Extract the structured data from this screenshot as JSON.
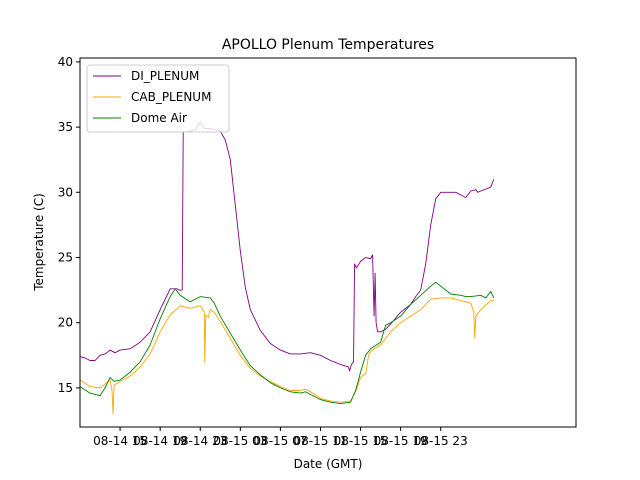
{
  "chart_data": {
    "type": "line",
    "title": "APOLLO Plenum Temperatures",
    "xlabel": "Date (GMT)",
    "ylabel": "Temperature (C)",
    "xlim": [
      0,
      49.5
    ],
    "ylim": [
      12,
      40.3
    ],
    "x_unit": "hours since 2020-08-14 11:00",
    "grid": false,
    "legend_position": "top-left",
    "yticks": [
      15,
      20,
      25,
      30,
      35,
      40
    ],
    "xticks": [
      {
        "value": 4,
        "label": "08-14 15"
      },
      {
        "value": 8,
        "label": "08-14 19"
      },
      {
        "value": 12,
        "label": "08-14 23"
      },
      {
        "value": 16,
        "label": "08-15 03"
      },
      {
        "value": 20,
        "label": "08-15 07"
      },
      {
        "value": 24,
        "label": "08-15 11"
      },
      {
        "value": 28,
        "label": "08-15 15"
      },
      {
        "value": 32,
        "label": "08-15 19"
      },
      {
        "value": 36,
        "label": "08-15 23"
      }
    ],
    "series": [
      {
        "name": "DI_PLENUM",
        "color": "#800080",
        "points": [
          [
            0,
            17.4
          ],
          [
            0.5,
            17.3
          ],
          [
            1,
            17.1
          ],
          [
            1.5,
            17.1
          ],
          [
            2,
            17.5
          ],
          [
            2.5,
            17.6
          ],
          [
            3,
            17.9
          ],
          [
            3.5,
            17.7
          ],
          [
            4,
            17.9
          ],
          [
            5,
            18.0
          ],
          [
            6,
            18.5
          ],
          [
            7,
            19.3
          ],
          [
            8,
            21.0
          ],
          [
            9,
            22.6
          ],
          [
            9.7,
            22.6
          ],
          [
            9.9,
            22.5
          ],
          [
            10.2,
            22.5
          ],
          [
            10.3,
            34.6
          ],
          [
            11,
            34.7
          ],
          [
            11.5,
            34.8
          ],
          [
            12,
            35.4
          ],
          [
            12.4,
            34.9
          ],
          [
            13,
            34.9
          ],
          [
            14,
            34.7
          ],
          [
            14.5,
            34.0
          ],
          [
            15,
            32.5
          ],
          [
            15.5,
            29.0
          ],
          [
            16,
            25.5
          ],
          [
            16.5,
            22.7
          ],
          [
            17,
            21.0
          ],
          [
            18,
            19.4
          ],
          [
            19,
            18.4
          ],
          [
            20,
            17.9
          ],
          [
            21,
            17.6
          ],
          [
            22,
            17.6
          ],
          [
            23,
            17.7
          ],
          [
            24,
            17.5
          ],
          [
            25,
            17.1
          ],
          [
            26,
            16.8
          ],
          [
            26.8,
            16.6
          ],
          [
            26.9,
            16.3
          ],
          [
            27.1,
            16.8
          ],
          [
            27.3,
            17.0
          ],
          [
            27.4,
            24.5
          ],
          [
            27.6,
            24.2
          ],
          [
            28,
            24.7
          ],
          [
            28.5,
            25.0
          ],
          [
            29,
            24.9
          ],
          [
            29.2,
            25.2
          ],
          [
            29.35,
            20.5
          ],
          [
            29.45,
            23.8
          ],
          [
            29.55,
            20.0
          ],
          [
            29.7,
            19.3
          ],
          [
            30,
            19.3
          ],
          [
            30.5,
            19.5
          ],
          [
            31,
            19.9
          ],
          [
            32,
            20.8
          ],
          [
            33,
            21.4
          ],
          [
            33.5,
            22.0
          ],
          [
            34,
            22.5
          ],
          [
            34.5,
            24.5
          ],
          [
            35,
            27.5
          ],
          [
            35.5,
            29.5
          ],
          [
            36,
            30.0
          ],
          [
            37,
            30.0
          ],
          [
            37.5,
            30.0
          ],
          [
            38,
            29.8
          ],
          [
            38.5,
            29.6
          ],
          [
            39,
            30.1
          ],
          [
            39.5,
            30.2
          ],
          [
            39.7,
            30.0
          ],
          [
            40,
            30.1
          ],
          [
            41,
            30.4
          ],
          [
            41.3,
            31.0
          ]
        ]
      },
      {
        "name": "CAB_PLENUM",
        "color": "#ffa500",
        "points": [
          [
            0,
            15.6
          ],
          [
            1,
            15.1
          ],
          [
            2,
            15.0
          ],
          [
            2.5,
            15.3
          ],
          [
            3,
            15.6
          ],
          [
            3.2,
            14.8
          ],
          [
            3.3,
            13.0
          ],
          [
            3.4,
            15.2
          ],
          [
            3.6,
            15.3
          ],
          [
            4,
            15.5
          ],
          [
            5,
            15.9
          ],
          [
            6,
            16.6
          ],
          [
            7,
            17.6
          ],
          [
            8,
            19.3
          ],
          [
            9,
            20.6
          ],
          [
            10,
            21.3
          ],
          [
            11,
            21.1
          ],
          [
            12,
            21.3
          ],
          [
            12.4,
            20.8
          ],
          [
            12.45,
            17.0
          ],
          [
            12.55,
            20.6
          ],
          [
            12.8,
            20.4
          ],
          [
            13,
            21.0
          ],
          [
            13.4,
            20.8
          ],
          [
            14,
            20.1
          ],
          [
            15,
            18.8
          ],
          [
            16,
            17.5
          ],
          [
            17,
            16.5
          ],
          [
            18,
            15.9
          ],
          [
            19,
            15.5
          ],
          [
            20,
            15.1
          ],
          [
            21,
            14.8
          ],
          [
            22,
            14.8
          ],
          [
            22.5,
            14.9
          ],
          [
            23,
            14.7
          ],
          [
            24,
            14.2
          ],
          [
            25,
            14.0
          ],
          [
            26,
            13.9
          ],
          [
            27,
            14.0
          ],
          [
            27.5,
            14.7
          ],
          [
            28,
            15.8
          ],
          [
            28.3,
            16.0
          ],
          [
            28.5,
            16.0
          ],
          [
            28.8,
            17.5
          ],
          [
            29,
            17.8
          ],
          [
            30,
            18.3
          ],
          [
            31,
            19.3
          ],
          [
            32,
            20.0
          ],
          [
            33,
            20.5
          ],
          [
            34,
            21.0
          ],
          [
            35,
            21.8
          ],
          [
            36,
            21.9
          ],
          [
            37,
            21.9
          ],
          [
            38,
            21.7
          ],
          [
            39,
            21.5
          ],
          [
            39.3,
            20.8
          ],
          [
            39.4,
            18.8
          ],
          [
            39.5,
            20.5
          ],
          [
            40,
            21.0
          ],
          [
            41,
            21.7
          ],
          [
            41.3,
            21.7
          ]
        ]
      },
      {
        "name": "Dome Air",
        "color": "#008000",
        "points": [
          [
            0,
            15.1
          ],
          [
            1,
            14.6
          ],
          [
            2,
            14.4
          ],
          [
            2.5,
            15.0
          ],
          [
            3,
            15.8
          ],
          [
            3.4,
            15.5
          ],
          [
            4,
            15.6
          ],
          [
            5,
            16.2
          ],
          [
            6,
            17.0
          ],
          [
            7,
            18.3
          ],
          [
            8,
            20.3
          ],
          [
            9,
            22.0
          ],
          [
            9.5,
            22.6
          ],
          [
            10,
            22.1
          ],
          [
            11,
            21.6
          ],
          [
            12,
            22.0
          ],
          [
            13,
            21.9
          ],
          [
            13.4,
            21.5
          ],
          [
            14,
            20.5
          ],
          [
            15,
            19.2
          ],
          [
            16,
            17.9
          ],
          [
            17,
            16.7
          ],
          [
            18,
            16.0
          ],
          [
            19,
            15.4
          ],
          [
            20,
            15.0
          ],
          [
            21,
            14.7
          ],
          [
            22,
            14.6
          ],
          [
            22.5,
            14.7
          ],
          [
            23,
            14.5
          ],
          [
            24,
            14.1
          ],
          [
            25,
            13.9
          ],
          [
            26,
            13.8
          ],
          [
            27,
            13.9
          ],
          [
            27.5,
            14.8
          ],
          [
            28,
            16.2
          ],
          [
            28.5,
            17.5
          ],
          [
            29,
            18.0
          ],
          [
            30,
            18.5
          ],
          [
            30.5,
            19.8
          ],
          [
            31,
            20.0
          ],
          [
            32,
            20.5
          ],
          [
            33,
            21.4
          ],
          [
            34,
            22.1
          ],
          [
            35,
            22.8
          ],
          [
            35.5,
            23.1
          ],
          [
            36,
            22.8
          ],
          [
            37,
            22.2
          ],
          [
            38,
            22.1
          ],
          [
            38.5,
            22.0
          ],
          [
            39,
            22.0
          ],
          [
            40,
            22.1
          ],
          [
            40.5,
            21.9
          ],
          [
            41,
            22.4
          ],
          [
            41.3,
            21.9
          ]
        ]
      }
    ]
  }
}
